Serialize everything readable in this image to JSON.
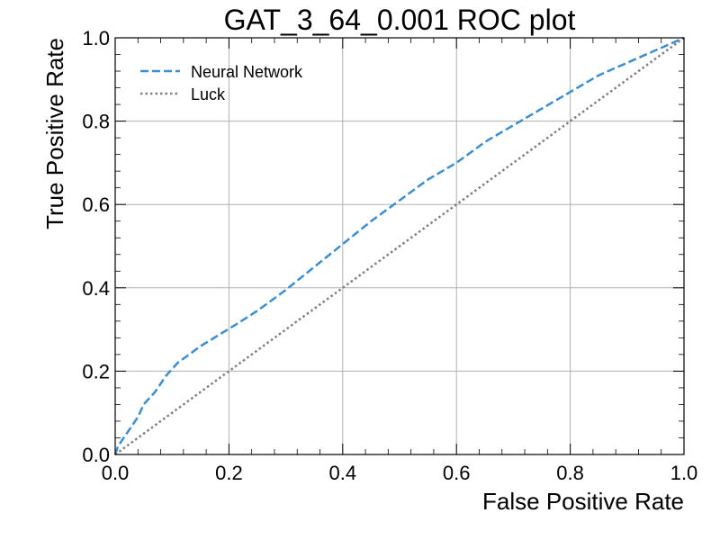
{
  "chart_data": {
    "type": "line",
    "title": "GAT_3_64_0.001 ROC plot",
    "xlabel": "False Positive Rate",
    "ylabel": "True Positive Rate",
    "xlim": [
      0.0,
      1.0
    ],
    "ylim": [
      0.0,
      1.0
    ],
    "xticks": [
      "0.0",
      "0.2",
      "0.4",
      "0.6",
      "0.8",
      "1.0"
    ],
    "yticks": [
      "0.0",
      "0.2",
      "0.4",
      "0.6",
      "0.8",
      "1.0"
    ],
    "grid": true,
    "legend_position": "top-left",
    "series": [
      {
        "name": "Neural Network",
        "color": "#3b8ed0",
        "style": "dashed",
        "x": [
          0.0,
          0.005,
          0.01,
          0.02,
          0.03,
          0.04,
          0.05,
          0.07,
          0.09,
          0.11,
          0.13,
          0.15,
          0.18,
          0.21,
          0.25,
          0.3,
          0.35,
          0.4,
          0.45,
          0.5,
          0.55,
          0.6,
          0.65,
          0.7,
          0.75,
          0.8,
          0.85,
          0.9,
          0.95,
          1.0
        ],
        "y": [
          0.0,
          0.02,
          0.03,
          0.05,
          0.07,
          0.09,
          0.12,
          0.15,
          0.19,
          0.22,
          0.24,
          0.26,
          0.285,
          0.31,
          0.345,
          0.395,
          0.45,
          0.505,
          0.56,
          0.61,
          0.66,
          0.7,
          0.75,
          0.79,
          0.83,
          0.87,
          0.91,
          0.94,
          0.97,
          1.0
        ]
      },
      {
        "name": "Luck",
        "color": "#7f7f7f",
        "style": "dotted",
        "x": [
          0.0,
          1.0
        ],
        "y": [
          0.0,
          1.0
        ]
      }
    ]
  }
}
